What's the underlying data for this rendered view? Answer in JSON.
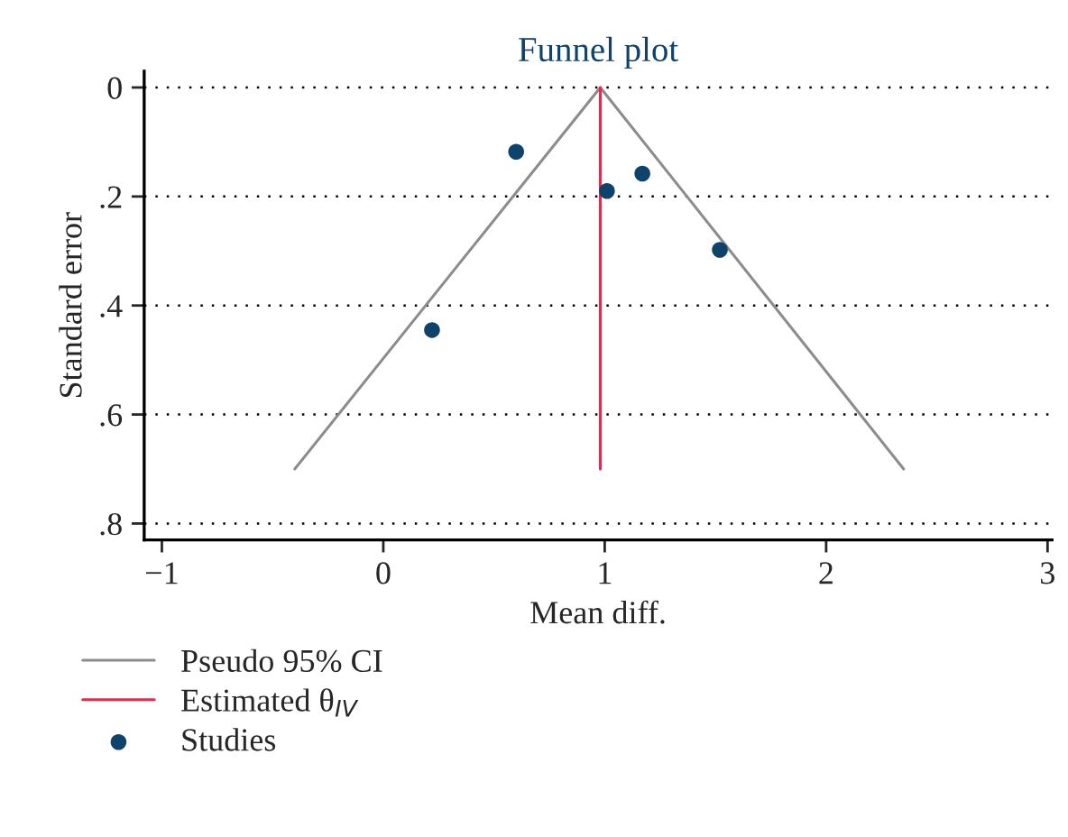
{
  "chart_data": {
    "type": "scatter",
    "title": "Funnel plot",
    "xlabel": "Mean diff.",
    "ylabel": "Standard error",
    "xlim": [
      -1.08,
      3.02
    ],
    "xticks": [
      {
        "value": -1,
        "label": "−1"
      },
      0,
      1,
      2,
      3
    ],
    "ylim": [
      0.83,
      -0.03
    ],
    "yticks": [
      0,
      {
        "value": 0.2,
        "label": ".2"
      },
      {
        "value": 0.4,
        "label": ".4"
      },
      {
        "value": 0.6,
        "label": ".6"
      },
      {
        "value": 0.8,
        "label": ".8"
      }
    ],
    "grid": "y",
    "legend": "bottom",
    "series": [
      {
        "name": "Pseudo 95% CI",
        "type": "line",
        "color": "#8c8c8c",
        "x": [
          -0.4,
          0.98,
          2.35
        ],
        "values": [
          0.7,
          0,
          0.7
        ]
      },
      {
        "name": "Estimated θ$_{IV}$",
        "type": "line",
        "color": "#d6324f",
        "x": [
          0.98,
          0.98
        ],
        "values": [
          0,
          0.7
        ]
      },
      {
        "name": "Studies",
        "color": "#10436b",
        "x": [
          0.6,
          1.01,
          1.17,
          1.52,
          0.22
        ],
        "values": [
          0.118,
          0.19,
          0.158,
          0.298,
          0.445
        ]
      }
    ]
  }
}
